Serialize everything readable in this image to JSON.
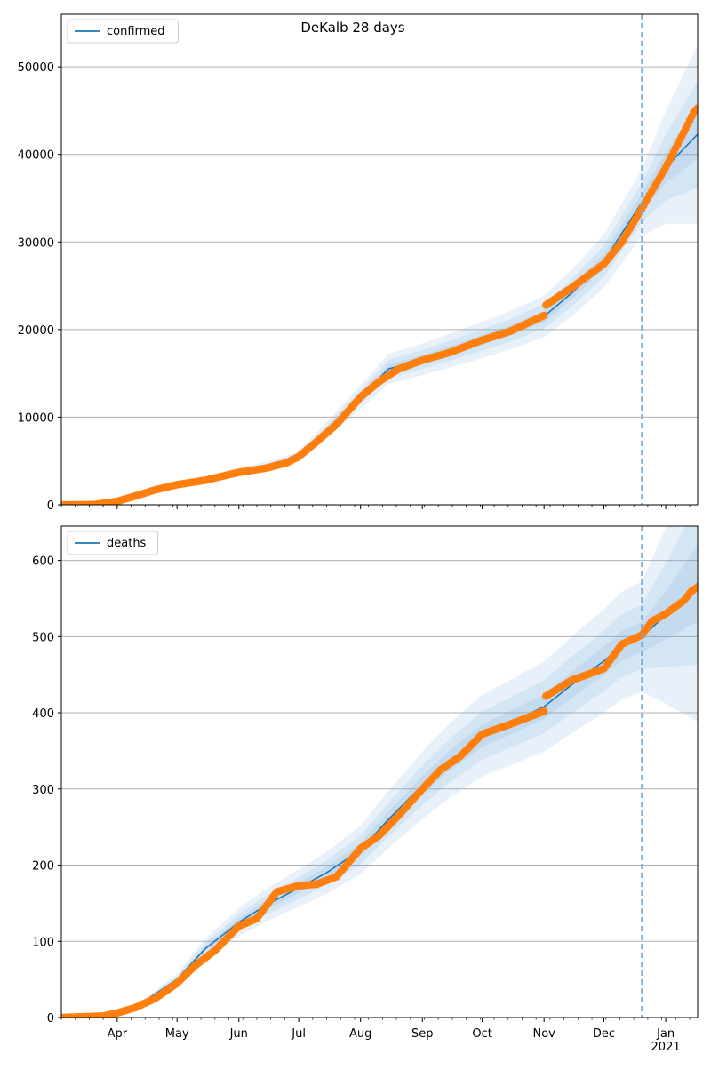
{
  "figure": {
    "title": "DeKalb 28 days"
  },
  "colors": {
    "model_line": "#1f77b4",
    "observed": "#ff7f0e",
    "band": "#6fa8dc",
    "grid": "#b0b0b0",
    "forecast_marker": "#6fa8dc"
  },
  "x_axis": {
    "tick_labels": [
      "Apr",
      "May",
      "Jun",
      "Jul",
      "Aug",
      "Sep",
      "Oct",
      "Nov",
      "Dec",
      "Jan"
    ],
    "tick_dates": [
      "2020-04-01",
      "2020-05-01",
      "2020-06-01",
      "2020-07-01",
      "2020-08-01",
      "2020-09-01",
      "2020-10-01",
      "2020-11-01",
      "2020-12-01",
      "2021-01-01"
    ],
    "year_label": "2021",
    "range": [
      "2020-03-04",
      "2021-01-17"
    ]
  },
  "forecast_start": "2020-12-20",
  "chart_data": [
    {
      "type": "line",
      "legend": "confirmed",
      "legend_position": "top-left",
      "grid": "y",
      "ylim": [
        0,
        56000
      ],
      "yticks": [
        0,
        10000,
        20000,
        30000,
        40000,
        50000
      ],
      "ytick_labels": [
        "0",
        "10000",
        "20000",
        "30000",
        "40000",
        "50000"
      ],
      "model": {
        "x": [
          "2020-03-04",
          "2020-03-20",
          "2020-04-01",
          "2020-04-15",
          "2020-05-01",
          "2020-05-15",
          "2020-06-01",
          "2020-06-15",
          "2020-07-01",
          "2020-07-15",
          "2020-08-01",
          "2020-08-15",
          "2020-09-01",
          "2020-09-15",
          "2020-10-01",
          "2020-10-15",
          "2020-11-01",
          "2020-11-15",
          "2020-12-01",
          "2020-12-10",
          "2020-12-20",
          "2021-01-01",
          "2021-01-17"
        ],
        "y": [
          0,
          100,
          500,
          1500,
          2300,
          2900,
          3800,
          4400,
          5500,
          8500,
          12300,
          15500,
          16600,
          17600,
          18800,
          19900,
          21500,
          24200,
          27800,
          31000,
          34500,
          38500,
          42300
        ]
      },
      "band_half_widths": [
        0.03,
        0.065,
        0.11
      ],
      "observed": {
        "x": [
          "2020-03-04",
          "2020-03-20",
          "2020-04-01",
          "2020-04-10",
          "2020-04-20",
          "2020-05-01",
          "2020-05-15",
          "2020-06-01",
          "2020-06-15",
          "2020-06-25",
          "2020-07-01",
          "2020-07-10",
          "2020-07-20",
          "2020-08-01",
          "2020-08-10",
          "2020-08-20",
          "2020-09-01",
          "2020-09-15",
          "2020-10-01",
          "2020-10-15",
          "2020-11-01",
          "2020-11-02",
          "2020-11-15",
          "2020-12-01",
          "2020-12-10",
          "2020-12-20",
          "2020-12-25",
          "2021-01-01",
          "2021-01-05",
          "2021-01-10",
          "2021-01-15",
          "2021-01-17"
        ],
        "y": [
          0,
          20,
          400,
          1000,
          1700,
          2300,
          2800,
          3700,
          4200,
          4800,
          5500,
          7200,
          9200,
          12300,
          14000,
          15500,
          16500,
          17400,
          18800,
          19800,
          21600,
          22800,
          24800,
          27500,
          30000,
          33800,
          35800,
          38500,
          40300,
          42500,
          44800,
          45300
        ]
      }
    },
    {
      "type": "line",
      "legend": "deaths",
      "legend_position": "top-left",
      "grid": "y",
      "ylim": [
        0,
        645
      ],
      "yticks": [
        0,
        100,
        200,
        300,
        400,
        500,
        600
      ],
      "ytick_labels": [
        "0",
        "100",
        "200",
        "300",
        "400",
        "500",
        "600"
      ],
      "model": {
        "x": [
          "2020-03-04",
          "2020-03-25",
          "2020-04-01",
          "2020-04-15",
          "2020-05-01",
          "2020-05-15",
          "2020-06-01",
          "2020-06-15",
          "2020-07-01",
          "2020-07-15",
          "2020-08-01",
          "2020-08-15",
          "2020-09-01",
          "2020-09-15",
          "2020-10-01",
          "2020-10-15",
          "2020-11-01",
          "2020-11-15",
          "2020-12-01",
          "2020-12-10",
          "2020-12-20",
          "2021-01-01",
          "2021-01-17"
        ],
        "y": [
          0,
          1,
          5,
          22,
          50,
          90,
          125,
          148,
          170,
          190,
          220,
          260,
          305,
          338,
          370,
          387,
          408,
          437,
          468,
          488,
          500,
          528,
          570
        ]
      },
      "band_half_widths": [
        0.04,
        0.085,
        0.145
      ],
      "observed": {
        "x": [
          "2020-03-04",
          "2020-03-25",
          "2020-04-01",
          "2020-04-10",
          "2020-04-20",
          "2020-05-01",
          "2020-05-10",
          "2020-05-20",
          "2020-06-01",
          "2020-06-10",
          "2020-06-20",
          "2020-07-01",
          "2020-07-10",
          "2020-07-20",
          "2020-08-01",
          "2020-08-10",
          "2020-08-20",
          "2020-09-01",
          "2020-09-10",
          "2020-09-20",
          "2020-10-01",
          "2020-10-15",
          "2020-11-01",
          "2020-11-02",
          "2020-11-15",
          "2020-12-01",
          "2020-12-10",
          "2020-12-20",
          "2020-12-25",
          "2021-01-01",
          "2021-01-10",
          "2021-01-14",
          "2021-01-17"
        ],
        "y": [
          0,
          2,
          6,
          13,
          25,
          45,
          68,
          88,
          120,
          130,
          165,
          173,
          175,
          185,
          222,
          238,
          265,
          300,
          325,
          343,
          372,
          385,
          402,
          422,
          443,
          458,
          490,
          502,
          520,
          530,
          547,
          560,
          565
        ]
      }
    }
  ]
}
